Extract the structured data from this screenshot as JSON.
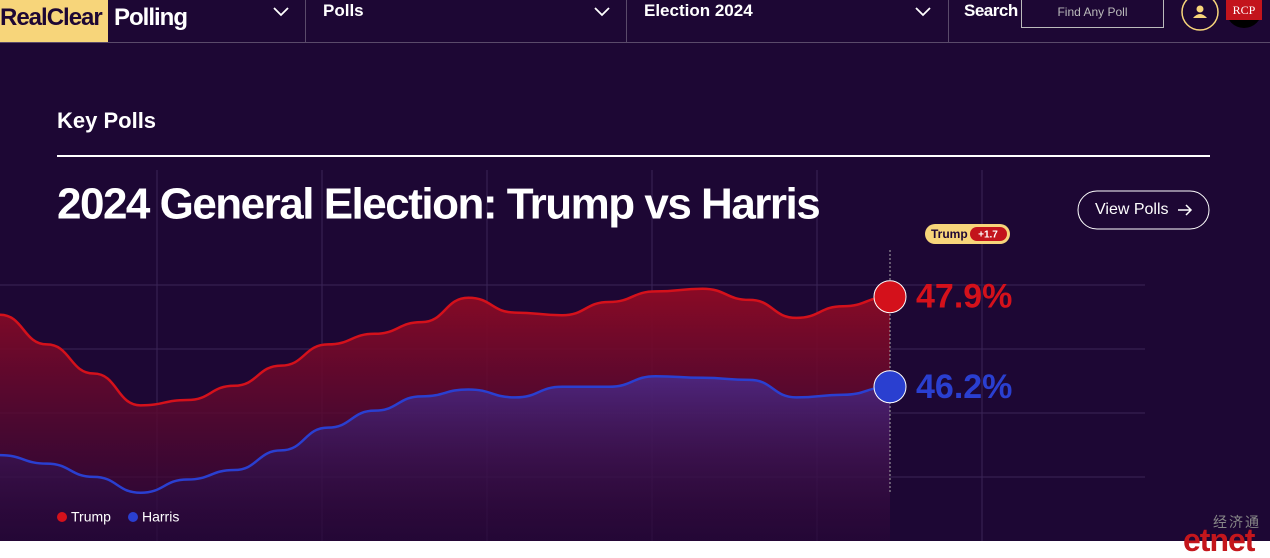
{
  "header": {
    "logo_left": "RealClear",
    "logo_right": "Polling",
    "nav": [
      "Polls",
      "Election 2024"
    ],
    "search_label": "Search",
    "search_placeholder": "Find Any Poll",
    "badge": "RCP"
  },
  "section": {
    "title": "Key Polls",
    "button": "View Polls"
  },
  "watermark": {
    "top": "经济通",
    "bottom": "etnet"
  },
  "chart_data": {
    "type": "line",
    "title": "2024 General Election: Trump vs Harris",
    "categories": [
      null,
      null,
      null,
      null,
      null,
      null,
      null,
      null,
      null,
      null,
      null,
      null,
      null,
      null,
      null,
      null,
      null,
      null,
      null,
      null
    ],
    "series": [
      {
        "name": "Trump",
        "color": "#d4111b",
        "values": [
          47.56,
          47.0,
          46.45,
          45.85,
          45.95,
          46.22,
          46.6,
          47.0,
          47.2,
          47.42,
          47.88,
          47.6,
          47.55,
          47.8,
          48.0,
          48.05,
          47.84,
          47.5,
          47.72,
          47.9
        ],
        "value_labels": [
          null,
          null,
          null,
          null,
          null,
          null,
          null,
          null,
          null,
          null,
          null,
          null,
          null,
          null,
          null,
          null,
          null,
          null,
          null,
          "47.9%"
        ]
      },
      {
        "name": "Harris",
        "color": "#2a3fd0",
        "values": [
          44.91,
          44.75,
          44.5,
          44.2,
          44.45,
          44.63,
          45.0,
          45.43,
          45.75,
          46.02,
          46.15,
          46.0,
          46.2,
          46.2,
          46.4,
          46.37,
          46.33,
          46.0,
          46.05,
          46.2
        ],
        "value_labels": [
          null,
          null,
          null,
          null,
          null,
          null,
          null,
          null,
          null,
          null,
          null,
          null,
          null,
          null,
          null,
          null,
          null,
          null,
          null,
          "46.2%"
        ]
      }
    ],
    "lead_badge": {
      "name": "Trump",
      "margin": "+1.7"
    },
    "ylim": [
      43.8,
      48.8
    ],
    "legend": "bottom-left"
  }
}
